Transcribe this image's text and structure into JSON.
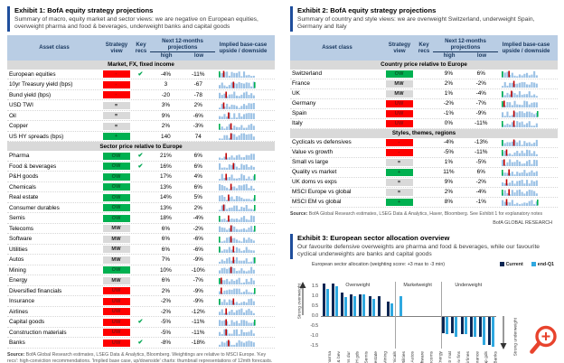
{
  "page": {
    "brand_footer": "BofA GLOBAL RESEARCH"
  },
  "colors": {
    "accent_blue": "#1f4e9c",
    "table_header_bg": "#b9cde4",
    "table_header_text": "#17365d",
    "section_row_bg": "#d9d9d9",
    "chip_red": "#fe0000",
    "chip_green": "#00b050",
    "chip_gray": "#d9d9d9",
    "check_green": "#00a651",
    "spark_blue": "#9cc2e5",
    "spark_red": "#c00000",
    "spark_green": "#00b050",
    "series_current": "#0b2653",
    "series_endq1": "#2fa8e0",
    "magnifier_orange": "#e8432d"
  },
  "table_columns": {
    "asset": "Asset class",
    "view": "Strategy view",
    "recs": "Key recs",
    "proj": "Next 12-months projections",
    "high": "high",
    "low": "low",
    "implied": "Implied base-case upside / downside"
  },
  "exhibit1": {
    "title": "Exhibit 1: BofA equity strategy projections",
    "subtitle": "Summary of macro, equity market and sector views: we are negative on European equities, overweight pharma and food & beverages, underweight banks and capital goods",
    "sections": [
      {
        "label": "Market, FX, fixed income",
        "rows": [
          {
            "asset": "European equities",
            "view": "-",
            "rec": true,
            "high": "-4%",
            "low": "-11%"
          },
          {
            "asset": "10yr Treasury yield (bps)",
            "view": "-",
            "rec": false,
            "high": "3",
            "low": "-67"
          },
          {
            "asset": "Bund yield (bps)",
            "view": "-",
            "rec": false,
            "high": "-20",
            "low": "-78"
          },
          {
            "asset": "USD TWI",
            "view": "=",
            "rec": false,
            "high": "3%",
            "low": "2%"
          },
          {
            "asset": "Oil",
            "view": "=",
            "rec": false,
            "high": "9%",
            "low": "-6%"
          },
          {
            "asset": "Copper",
            "view": "=",
            "rec": false,
            "high": "2%",
            "low": "-3%"
          },
          {
            "asset": "US HY spreads (bps)",
            "view": "+",
            "rec": false,
            "high": "140",
            "low": "74"
          }
        ]
      },
      {
        "label": "Sector price relative to Europe",
        "rows": [
          {
            "asset": "Pharma",
            "view": "OW",
            "rec": true,
            "high": "21%",
            "low": "6%"
          },
          {
            "asset": "Food & beverages",
            "view": "OW",
            "rec": true,
            "high": "16%",
            "low": "6%"
          },
          {
            "asset": "P&H goods",
            "view": "OW",
            "rec": false,
            "high": "17%",
            "low": "4%"
          },
          {
            "asset": "Chemicals",
            "view": "OW",
            "rec": false,
            "high": "13%",
            "low": "6%"
          },
          {
            "asset": "Real estate",
            "view": "OW",
            "rec": false,
            "high": "14%",
            "low": "5%"
          },
          {
            "asset": "Consumer durables",
            "view": "OW",
            "rec": false,
            "high": "13%",
            "low": "2%"
          },
          {
            "asset": "Semis",
            "view": "OW",
            "rec": false,
            "high": "18%",
            "low": "-4%"
          },
          {
            "asset": "Telecoms",
            "view": "MW",
            "rec": false,
            "high": "6%",
            "low": "-2%"
          },
          {
            "asset": "Software",
            "view": "MW",
            "rec": false,
            "high": "6%",
            "low": "-6%"
          },
          {
            "asset": "Utilities",
            "view": "MW",
            "rec": false,
            "high": "6%",
            "low": "-6%"
          },
          {
            "asset": "Autos",
            "view": "MW",
            "rec": false,
            "high": "7%",
            "low": "-9%"
          },
          {
            "asset": "Mining",
            "view": "OW",
            "rec": false,
            "high": "10%",
            "low": "-10%"
          },
          {
            "asset": "Energy",
            "view": "MW",
            "rec": false,
            "high": "6%",
            "low": "-7%"
          },
          {
            "asset": "Diversified financials",
            "view": "UW",
            "rec": false,
            "high": "2%",
            "low": "-9%"
          },
          {
            "asset": "Insurance",
            "view": "UW",
            "rec": false,
            "high": "-2%",
            "low": "-9%"
          },
          {
            "asset": "Airlines",
            "view": "UW",
            "rec": false,
            "high": "-2%",
            "low": "-12%"
          },
          {
            "asset": "Capital goods",
            "view": "UW",
            "rec": true,
            "high": "-5%",
            "low": "-11%"
          },
          {
            "asset": "Construction materials",
            "view": "UW",
            "rec": false,
            "high": "-5%",
            "low": "-11%"
          },
          {
            "asset": "Banks",
            "view": "UW",
            "rec": true,
            "high": "-8%",
            "low": "-18%"
          }
        ]
      }
    ],
    "source": {
      "label": "Source:",
      "text": " BofA Global Research estimates, LSEG Data & Analytics, Bloomberg. Weightings are relative to MSCI Europe. 'Key recs': high-conviction recommendations. 'Implied base case, up/downside' charts: thumbnail representations of 12mth forecasts. Green/red bars: highest /lowest points in forecast trajectory (see Exhibit 11 as an example). MW = marketweight, OW = overweight, UW = underweight. Stance: '+' is positive, '=' is neutral and '-' is negative"
    }
  },
  "exhibit2": {
    "title": "Exhibit 2: BofA equity strategy projections",
    "subtitle": "Summary of country and style views: we are overweight Switzerland, underweight Spain, Germany and Italy",
    "sections": [
      {
        "label": "Country price relative to Europe",
        "rows": [
          {
            "asset": "Switzerland",
            "view": "OW",
            "rec": false,
            "high": "9%",
            "low": "6%"
          },
          {
            "asset": "France",
            "view": "MW",
            "rec": false,
            "high": "2%",
            "low": "-2%"
          },
          {
            "asset": "UK",
            "view": "MW",
            "rec": false,
            "high": "1%",
            "low": "-4%"
          },
          {
            "asset": "Germany",
            "view": "UW",
            "rec": false,
            "high": "-2%",
            "low": "-7%"
          },
          {
            "asset": "Spain",
            "view": "UW",
            "rec": false,
            "high": "-1%",
            "low": "-9%"
          },
          {
            "asset": "Italy",
            "view": "UW",
            "rec": false,
            "high": "0%",
            "low": "-11%"
          }
        ]
      },
      {
        "label": "Styles, themes, regions",
        "rows": [
          {
            "asset": "Cyclicals vs defensives",
            "view": "-",
            "rec": false,
            "high": "-4%",
            "low": "-13%"
          },
          {
            "asset": "Value vs growth",
            "view": "-",
            "rec": false,
            "high": "-5%",
            "low": "-11%"
          },
          {
            "asset": "Small vs large",
            "view": "=",
            "rec": false,
            "high": "1%",
            "low": "-5%"
          },
          {
            "asset": "Quality vs market",
            "view": "+",
            "rec": false,
            "high": "11%",
            "low": "6%"
          },
          {
            "asset": "UK doms vs exps",
            "view": "=",
            "rec": false,
            "high": "9%",
            "low": "-2%"
          },
          {
            "asset": "MSCI Europe vs global",
            "view": "=",
            "rec": false,
            "high": "2%",
            "low": "-4%"
          },
          {
            "asset": "MSCI EM vs global",
            "view": "+",
            "rec": false,
            "high": "8%",
            "low": "-1%"
          }
        ]
      }
    ],
    "source": {
      "label": "Source:",
      "text": " BofA Global Research estimates, LSEG Data & Analytics, Haver, Bloomberg. See Exhibit 1 for explanatory notes"
    }
  },
  "exhibit3": {
    "title": "Exhibit 3: European sector allocation overview",
    "subtitle": "Our favourite defensive overweights are pharma and food & beverages, while our favourite cyclical underweights are banks and capital goods"
  },
  "chart_data": {
    "type": "bar",
    "title": "European sector allocation (weighting score: +3 max to -3 min)",
    "legend": [
      "Current",
      "end-Q1"
    ],
    "legend_position": "top-right",
    "ylim": [
      -1.5,
      1.5
    ],
    "yticks": [
      1.5,
      1.0,
      0.5,
      0.0,
      -0.5,
      -1.0,
      -1.5
    ],
    "left_axis_label": "Strong overweight",
    "right_axis_label": "Strong underweight",
    "group_labels": [
      "Overweight",
      "Marketweight",
      "Underweight"
    ],
    "group_spans": [
      8,
      5,
      6
    ],
    "categories": [
      "Pharma",
      "Food & bev",
      "Cons dur",
      "P&H gds",
      "Semis",
      "Real estate",
      "Mining",
      "Chemicals",
      "Utilities",
      "Autos",
      "Software",
      "Telecoms",
      "Energy",
      "Constr mat",
      "Div fins",
      "Airlines",
      "Insurance",
      "Cap gds",
      "Banks"
    ],
    "series": [
      {
        "name": "Current",
        "color": "#0b2653",
        "values": [
          1.6,
          1.6,
          1.15,
          1.05,
          1.05,
          1.0,
          1.0,
          0.7,
          0,
          0,
          0,
          0,
          0,
          -0.85,
          -0.85,
          -0.9,
          -1.0,
          -1.0,
          -1.45
        ]
      },
      {
        "name": "end-Q1",
        "color": "#2fa8e0",
        "values": [
          1.35,
          1.5,
          0.95,
          1.0,
          1.05,
          0.85,
          0,
          0.6,
          1.0,
          0,
          0,
          0,
          0,
          -0.9,
          -1.0,
          -0.9,
          -1.0,
          -1.45,
          -1.5
        ]
      }
    ]
  }
}
